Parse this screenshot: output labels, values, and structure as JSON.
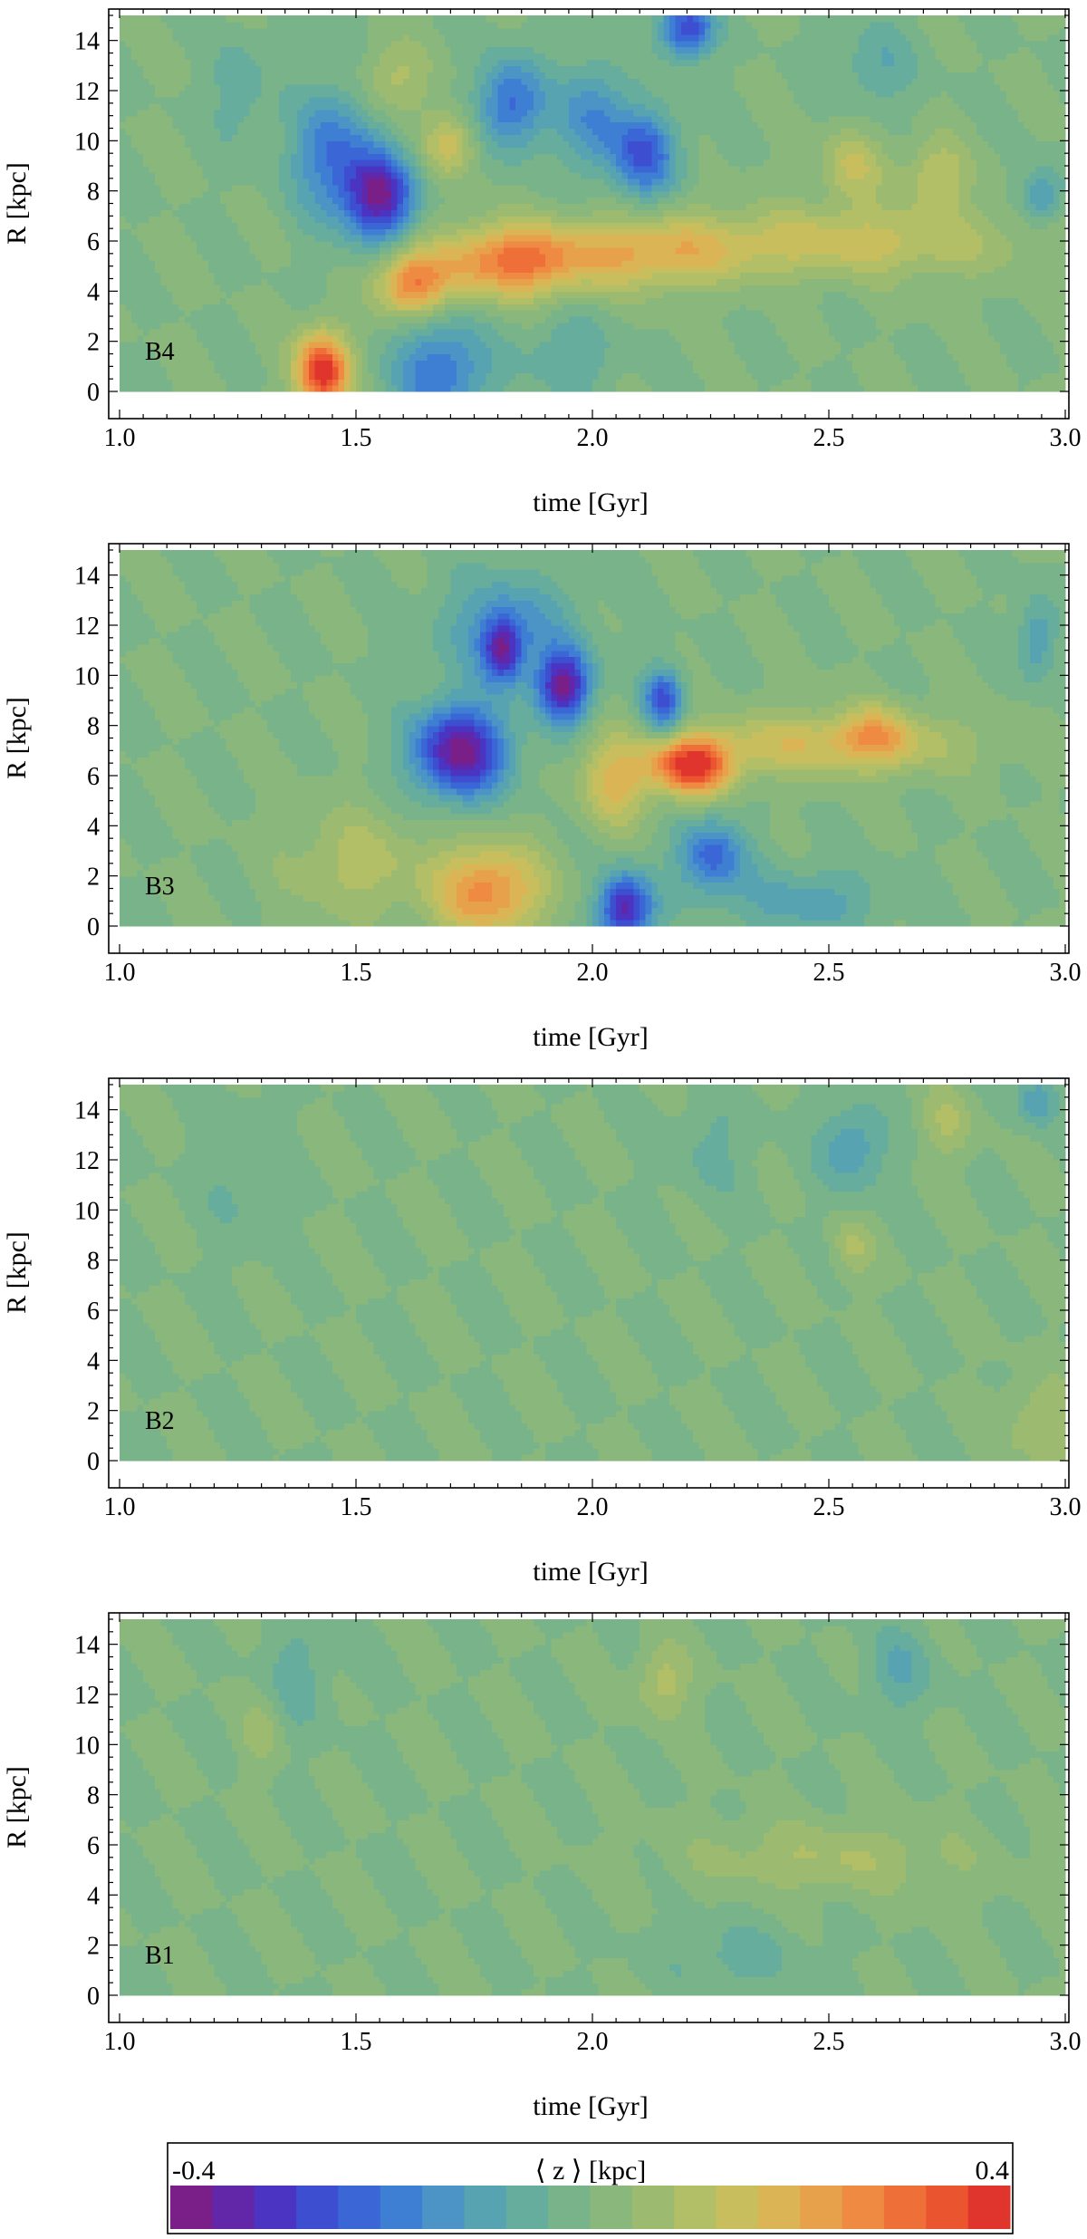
{
  "colors": {
    "scale": [
      "#7a1f88",
      "#6227a8",
      "#4a34c1",
      "#3d4ed0",
      "#3b67d6",
      "#3f7fd3",
      "#4b94c5",
      "#58a3b2",
      "#66ad9e",
      "#78b38a",
      "#8ab77b",
      "#9dbb70",
      "#b3bf66",
      "#c8be5d",
      "#dbb455",
      "#e8a14b",
      "#ee8a41",
      "#ef6f38",
      "#ea5530",
      "#e0352d"
    ]
  },
  "colorbar": {
    "title": "⟨ z ⟩ [kpc]",
    "min_label": "-0.4",
    "max_label": "0.4",
    "range": [
      -0.4,
      0.4
    ]
  },
  "chart_data": [
    {
      "type": "heatmap",
      "panel": "B4",
      "xlabel": "time [Gyr]",
      "ylabel": "R [kpc]",
      "xlim": [
        1.0,
        3.0
      ],
      "ylim": [
        0,
        15
      ],
      "xticks": [
        "1.0",
        "1.5",
        "2.0",
        "2.5",
        "3.0"
      ],
      "yticks": [
        "0",
        "2",
        "4",
        "6",
        "8",
        "10",
        "12",
        "14"
      ],
      "features": [
        {
          "t": 1.43,
          "R": 0.8,
          "z": 0.4,
          "st": 0.04,
          "sR": 1.1
        },
        {
          "t": 1.55,
          "R": 7.8,
          "z": -0.36,
          "st": 0.05,
          "sR": 1.2
        },
        {
          "t": 1.45,
          "R": 9.5,
          "z": -0.2,
          "st": 0.06,
          "sR": 1.8
        },
        {
          "t": 1.83,
          "R": 11.5,
          "z": -0.22,
          "st": 0.05,
          "sR": 1.3
        },
        {
          "t": 2.0,
          "R": 11.0,
          "z": -0.16,
          "st": 0.05,
          "sR": 1.5
        },
        {
          "t": 2.11,
          "R": 9.5,
          "z": -0.24,
          "st": 0.05,
          "sR": 1.2
        },
        {
          "t": 2.2,
          "R": 14.5,
          "z": -0.28,
          "st": 0.04,
          "sR": 0.8
        },
        {
          "t": 1.68,
          "R": 0.8,
          "z": -0.2,
          "st": 0.07,
          "sR": 1.5
        },
        {
          "t": 1.95,
          "R": 1.5,
          "z": -0.08,
          "st": 0.07,
          "sR": 1.2
        },
        {
          "t": 1.82,
          "R": 5.2,
          "z": 0.28,
          "st": 0.1,
          "sR": 1.0
        },
        {
          "t": 1.62,
          "R": 4.3,
          "z": 0.28,
          "st": 0.05,
          "sR": 0.9
        },
        {
          "t": 2.1,
          "R": 5.5,
          "z": 0.18,
          "st": 0.15,
          "sR": 1.0
        },
        {
          "t": 2.55,
          "R": 6.0,
          "z": 0.14,
          "st": 0.25,
          "sR": 1.0
        },
        {
          "t": 2.55,
          "R": 9.0,
          "z": 0.12,
          "st": 0.05,
          "sR": 1.0
        },
        {
          "t": 2.73,
          "R": 8.6,
          "z": 0.12,
          "st": 0.05,
          "sR": 1.0
        },
        {
          "t": 1.58,
          "R": 12.5,
          "z": 0.1,
          "st": 0.05,
          "sR": 1.0
        },
        {
          "t": 1.7,
          "R": 9.9,
          "z": 0.14,
          "st": 0.04,
          "sR": 0.9
        },
        {
          "t": 2.95,
          "R": 7.8,
          "z": -0.14,
          "st": 0.03,
          "sR": 0.8
        },
        {
          "t": 2.6,
          "R": 13.0,
          "z": -0.08,
          "st": 0.06,
          "sR": 1.2
        },
        {
          "t": 1.25,
          "R": 12.0,
          "z": -0.08,
          "st": 0.04,
          "sR": 1.5
        }
      ]
    },
    {
      "type": "heatmap",
      "panel": "B3",
      "xlabel": "time [Gyr]",
      "ylabel": "R [kpc]",
      "xlim": [
        1.0,
        3.0
      ],
      "ylim": [
        0,
        15
      ],
      "xticks": [
        "1.0",
        "1.5",
        "2.0",
        "2.5",
        "3.0"
      ],
      "yticks": [
        "0",
        "2",
        "4",
        "6",
        "8",
        "10",
        "12",
        "14"
      ],
      "features": [
        {
          "t": 1.72,
          "R": 7.0,
          "z": -0.38,
          "st": 0.07,
          "sR": 1.3
        },
        {
          "t": 1.94,
          "R": 9.6,
          "z": -0.36,
          "st": 0.04,
          "sR": 1.0
        },
        {
          "t": 1.81,
          "R": 11.0,
          "z": -0.28,
          "st": 0.03,
          "sR": 0.9
        },
        {
          "t": 2.15,
          "R": 9.0,
          "z": -0.26,
          "st": 0.03,
          "sR": 0.9
        },
        {
          "t": 2.07,
          "R": 0.7,
          "z": -0.34,
          "st": 0.04,
          "sR": 1.0
        },
        {
          "t": 2.25,
          "R": 2.8,
          "z": -0.22,
          "st": 0.05,
          "sR": 1.0
        },
        {
          "t": 1.82,
          "R": 12.0,
          "z": -0.14,
          "st": 0.1,
          "sR": 1.5
        },
        {
          "t": 2.21,
          "R": 6.4,
          "z": 0.38,
          "st": 0.06,
          "sR": 0.8
        },
        {
          "t": 2.5,
          "R": 7.3,
          "z": 0.16,
          "st": 0.2,
          "sR": 0.9
        },
        {
          "t": 2.05,
          "R": 5.8,
          "z": 0.18,
          "st": 0.05,
          "sR": 1.2
        },
        {
          "t": 1.78,
          "R": 1.4,
          "z": 0.26,
          "st": 0.08,
          "sR": 1.3
        },
        {
          "t": 1.5,
          "R": 2.5,
          "z": 0.1,
          "st": 0.1,
          "sR": 1.5
        },
        {
          "t": 2.6,
          "R": 7.7,
          "z": 0.12,
          "st": 0.05,
          "sR": 0.8
        },
        {
          "t": 2.45,
          "R": 1.0,
          "z": -0.1,
          "st": 0.12,
          "sR": 1.0
        },
        {
          "t": 2.94,
          "R": 11.5,
          "z": -0.12,
          "st": 0.03,
          "sR": 1.2
        }
      ]
    },
    {
      "type": "heatmap",
      "panel": "B2",
      "xlabel": "time [Gyr]",
      "ylabel": "R [kpc]",
      "xlim": [
        1.0,
        3.0
      ],
      "ylim": [
        0,
        15
      ],
      "xticks": [
        "1.0",
        "1.5",
        "2.0",
        "2.5",
        "3.0"
      ],
      "yticks": [
        "0",
        "2",
        "4",
        "6",
        "8",
        "10",
        "12",
        "14"
      ],
      "features": [
        {
          "t": 2.55,
          "R": 12.5,
          "z": -0.12,
          "st": 0.05,
          "sR": 1.2
        },
        {
          "t": 2.94,
          "R": 14.4,
          "z": -0.12,
          "st": 0.03,
          "sR": 0.7
        },
        {
          "t": 1.25,
          "R": 11.5,
          "z": -0.05,
          "st": 0.05,
          "sR": 2.0
        },
        {
          "t": 2.25,
          "R": 12.5,
          "z": -0.05,
          "st": 0.06,
          "sR": 1.5
        },
        {
          "t": 2.55,
          "R": 8.5,
          "z": 0.08,
          "st": 0.03,
          "sR": 0.8
        },
        {
          "t": 2.95,
          "R": 1.5,
          "z": 0.08,
          "st": 0.06,
          "sR": 1.2
        },
        {
          "t": 2.75,
          "R": 13.5,
          "z": 0.08,
          "st": 0.04,
          "sR": 1.0
        }
      ]
    },
    {
      "type": "heatmap",
      "panel": "B1",
      "xlabel": "time [Gyr]",
      "ylabel": "R [kpc]",
      "xlim": [
        1.0,
        3.0
      ],
      "ylim": [
        0,
        15
      ],
      "xticks": [
        "1.0",
        "1.5",
        "2.0",
        "2.5",
        "3.0"
      ],
      "yticks": [
        "0",
        "2",
        "4",
        "6",
        "8",
        "10",
        "12",
        "14"
      ],
      "features": [
        {
          "t": 2.15,
          "R": 12.5,
          "z": 0.1,
          "st": 0.04,
          "sR": 1.0
        },
        {
          "t": 1.38,
          "R": 12.8,
          "z": -0.06,
          "st": 0.05,
          "sR": 1.5
        },
        {
          "t": 2.65,
          "R": 13.0,
          "z": -0.08,
          "st": 0.05,
          "sR": 1.2
        },
        {
          "t": 2.5,
          "R": 5.5,
          "z": 0.08,
          "st": 0.2,
          "sR": 1.0
        },
        {
          "t": 2.3,
          "R": 1.5,
          "z": -0.06,
          "st": 0.1,
          "sR": 1.0
        },
        {
          "t": 1.3,
          "R": 10.5,
          "z": 0.06,
          "st": 0.03,
          "sR": 1.0
        }
      ]
    }
  ]
}
